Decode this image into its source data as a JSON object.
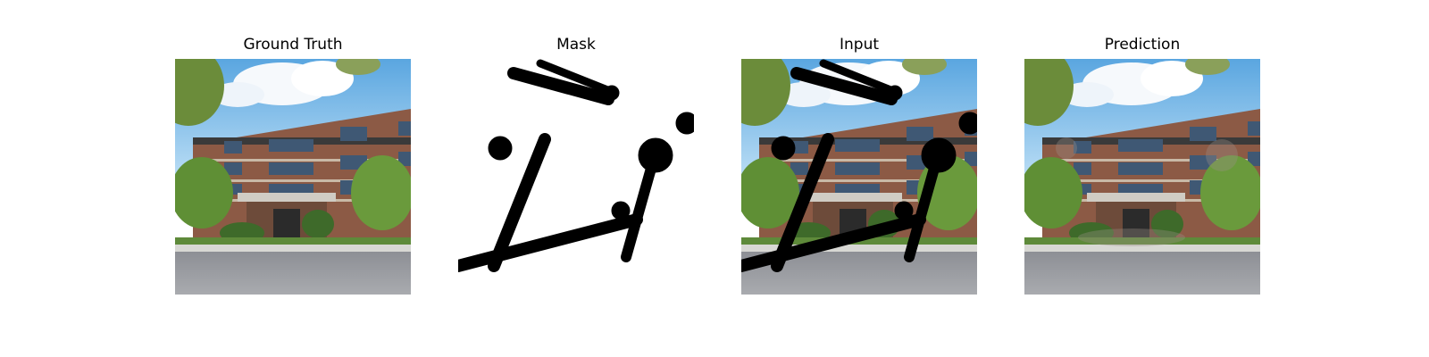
{
  "titles": {
    "ground_truth": "Ground Truth",
    "mask": "Mask",
    "input": "Input",
    "prediction": "Prediction"
  }
}
